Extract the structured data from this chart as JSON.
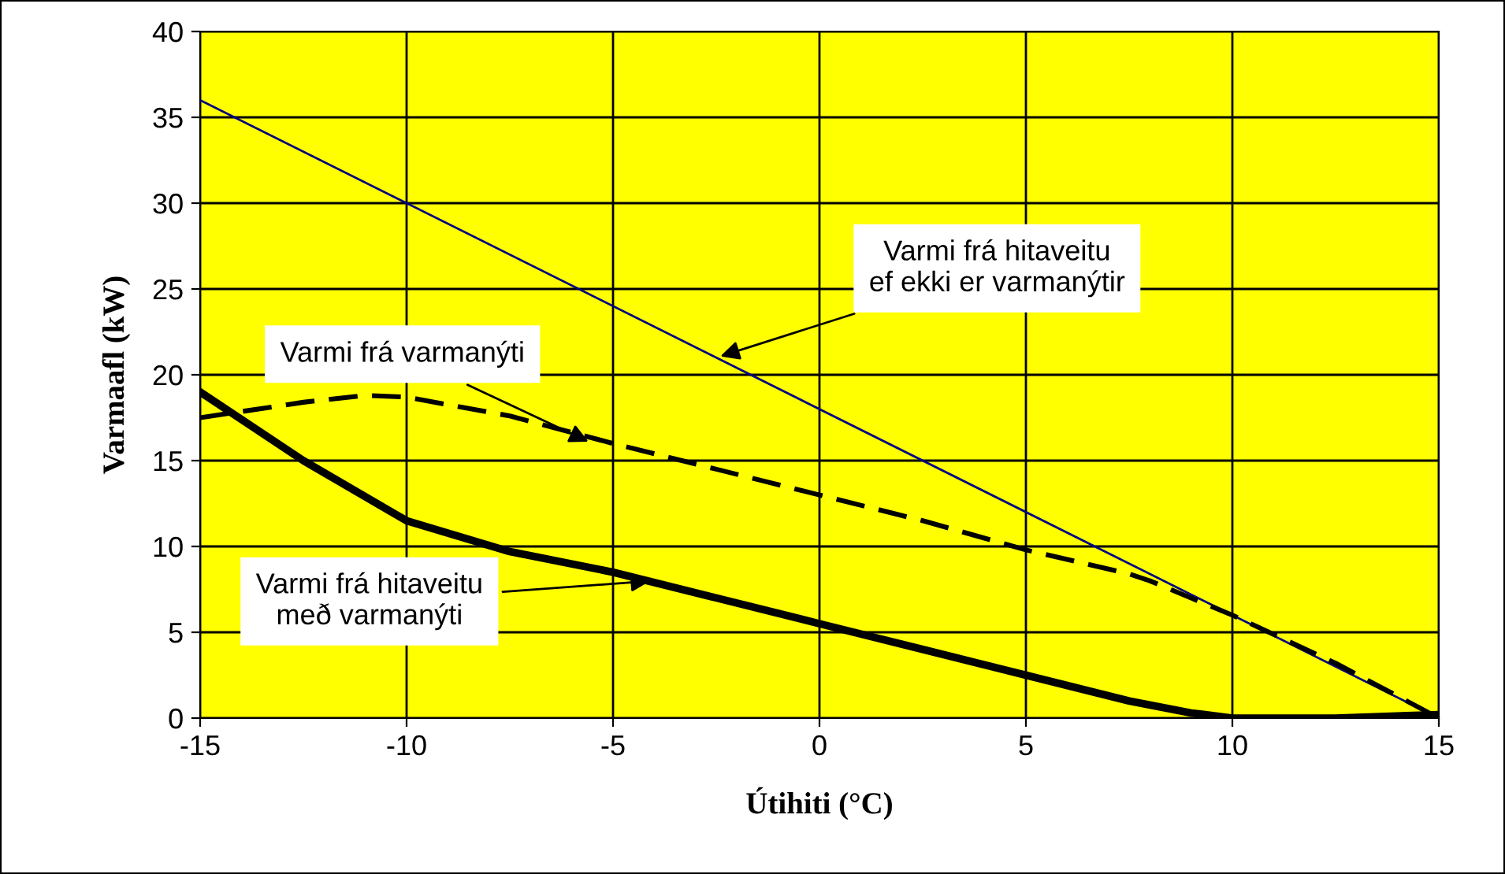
{
  "chart_data": {
    "type": "line",
    "xlabel": "Útihiti (°C)",
    "ylabel": "Varmaafl (kW)",
    "xlim": [
      -15,
      15
    ],
    "xticks": [
      -15,
      -10,
      -5,
      0,
      5,
      10,
      15
    ],
    "ylim": [
      0,
      40
    ],
    "yticks": [
      0,
      5,
      10,
      15,
      20,
      25,
      30,
      35,
      40
    ],
    "grid": true,
    "legend": false,
    "marker": "none",
    "series": [
      {
        "color": "#000080",
        "line_style": "solid",
        "x": [
          -15,
          15
        ],
        "values": [
          36,
          0
        ]
      },
      {
        "color": "#000000",
        "line_style": "dashed",
        "x": [
          -15,
          -12.5,
          -11,
          -10,
          -7.5,
          -5,
          -2.5,
          0,
          2.5,
          5,
          7.5,
          8,
          10,
          12.5,
          15
        ],
        "values": [
          17.5,
          18.4,
          18.8,
          18.7,
          17.6,
          16,
          14.5,
          13,
          11.5,
          9.8,
          8.4,
          8,
          6,
          3.2,
          0
        ]
      },
      {
        "color": "#000000",
        "line_style": "solid",
        "x": [
          -15,
          -12.5,
          -10,
          -7.5,
          -5,
          -2.5,
          0,
          2.5,
          5,
          7.5,
          9,
          10,
          12.5,
          15
        ],
        "values": [
          19,
          15,
          11.5,
          9.7,
          8.5,
          7,
          5.5,
          4,
          2.5,
          1,
          0.3,
          0,
          0,
          0.2
        ]
      }
    ],
    "annotations": [
      {
        "text": "Varmi frá hitaveitu\nef ekki er varmanýtir",
        "x": -2.5,
        "y": 21
      },
      {
        "text": "Varmi frá varmanýti",
        "x": -5.5,
        "y": 16
      },
      {
        "text": "Varmi frá hitaveitu\nmeð varmanýti",
        "x": -4,
        "y": 8
      }
    ]
  }
}
